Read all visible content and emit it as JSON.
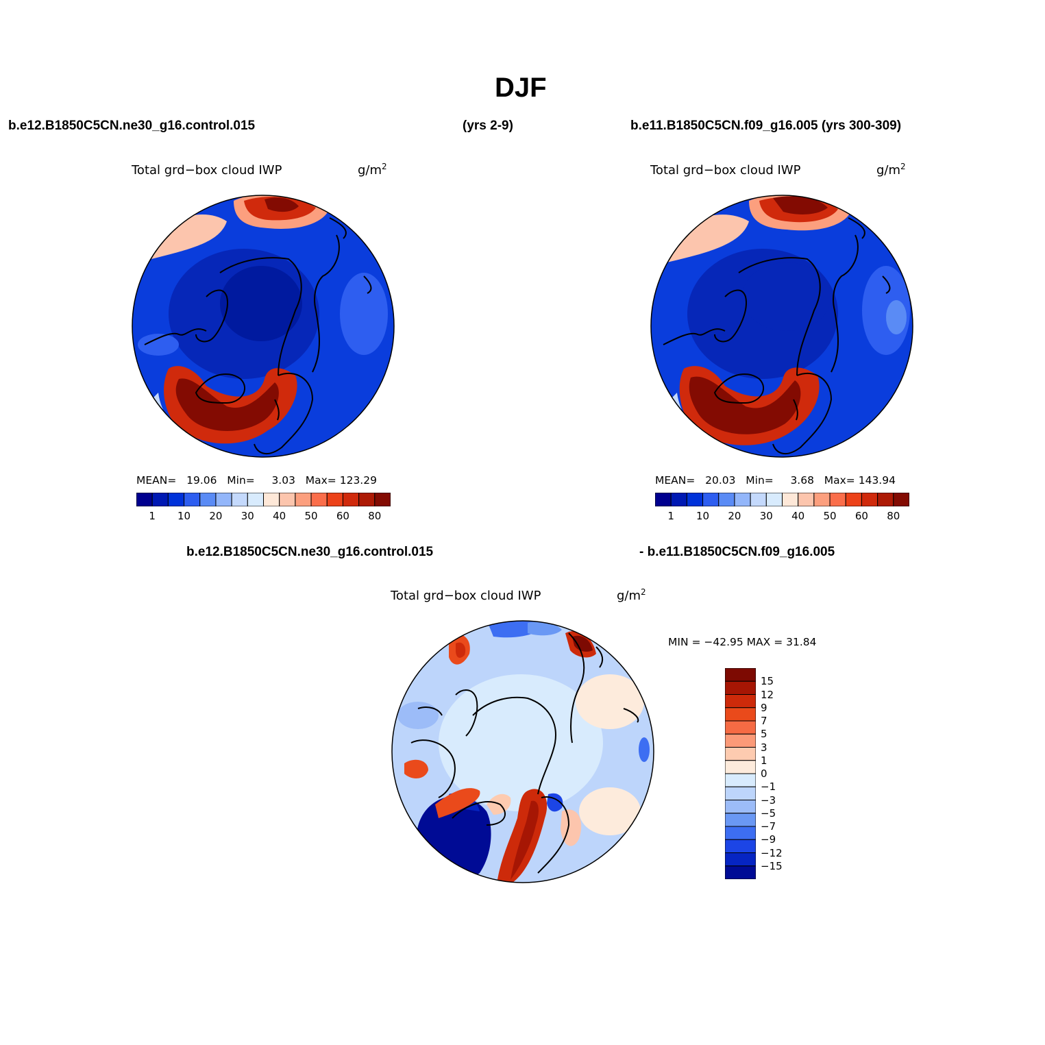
{
  "figure": {
    "season": "DJF",
    "case1_title": "b.e12.B1850C5CN.ne30_g16.control.015",
    "case1_years": "(yrs 2-9)",
    "case2_title": "b.e11.B1850C5CN.f09_g16.005 (yrs 300-309)",
    "diff_left": "b.e12.B1850C5CN.ne30_g16.control.015",
    "diff_right": "- b.e11.B1850C5CN.f09_g16.005"
  },
  "panels": [
    {
      "variable": "Total grd−box cloud IWP",
      "units": "g/m",
      "units_sup": "2",
      "stats": {
        "mean_label": "MEAN=",
        "mean": "19.06",
        "min_label": "Min=",
        "min": "3.03",
        "max_label": "Max=",
        "max": "123.29"
      }
    },
    {
      "variable": "Total grd−box cloud IWP",
      "units": "g/m",
      "units_sup": "2",
      "stats": {
        "mean_label": "MEAN=",
        "mean": "20.03",
        "min_label": "Min=",
        "min": "3.68",
        "max_label": "Max=",
        "max": "143.94"
      }
    },
    {
      "variable": "Total grd−box cloud IWP",
      "units": "g/m",
      "units_sup": "2",
      "stats_text": "MIN = −42.95  MAX =   31.84"
    }
  ],
  "abs_colorbar": {
    "colors": [
      "#00008f",
      "#0019b3",
      "#0032d9",
      "#2e5ef0",
      "#5a8bf5",
      "#93b6fa",
      "#c4d9fc",
      "#d8ebfd",
      "#fee8d8",
      "#fcc5ad",
      "#fc9f7e",
      "#fa6e4b",
      "#ec4219",
      "#d02a0c",
      "#ad1a05",
      "#830b02"
    ],
    "labels": [
      "1",
      "10",
      "20",
      "30",
      "40",
      "50",
      "60",
      "80"
    ]
  },
  "diff_colorbar": {
    "colors": [
      "#7d0a02",
      "#a61604",
      "#cd2a0a",
      "#ea4a1b",
      "#f66b44",
      "#fb9a78",
      "#fdcbb0",
      "#fdebdc",
      "#d8ebfd",
      "#bdd5fb",
      "#9cbcf8",
      "#6a98f4",
      "#3d6ef2",
      "#1c45e6",
      "#0625c3",
      "#000b95"
    ],
    "labels": [
      "15",
      "12",
      "9",
      "7",
      "5",
      "3",
      "1",
      "0",
      "−1",
      "−3",
      "−5",
      "−7",
      "−9",
      "−12",
      "−15"
    ]
  }
}
